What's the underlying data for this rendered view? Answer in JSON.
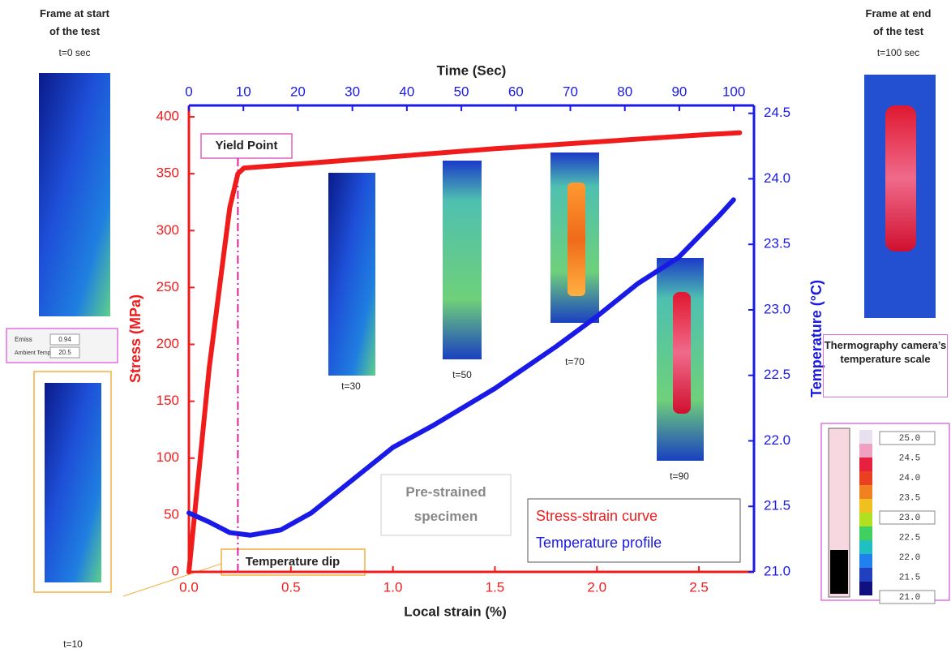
{
  "chart_data": {
    "type": "line",
    "xlabel": "Local strain (%)",
    "x2label": "Time (Sec)",
    "ylabel": "Stress (MPa)",
    "y2label": "Temperature (°C)",
    "xlim": [
      0,
      2.77
    ],
    "xticks": [
      {
        "value": 0,
        "label": "0.0"
      },
      0.5,
      {
        "value": 1,
        "label": "1.0"
      },
      1.5,
      {
        "value": 2,
        "label": "2.0"
      },
      2.5
    ],
    "x2lim": [
      0,
      103.7
    ],
    "x2ticks": [
      0,
      10,
      20,
      30,
      40,
      50,
      60,
      70,
      80,
      90,
      100
    ],
    "ylim": [
      0,
      410
    ],
    "yticks": [
      0,
      50,
      100,
      150,
      200,
      250,
      300,
      350,
      400
    ],
    "y2lim": [
      21.0,
      24.56
    ],
    "y2ticks": [
      {
        "value": 21,
        "label": "21.0"
      },
      21.5,
      {
        "value": 22,
        "label": "22.0"
      },
      22.5,
      {
        "value": 23,
        "label": "23.0"
      },
      23.5,
      {
        "value": 24,
        "label": "24.0"
      },
      24.5
    ],
    "legend": "lower right",
    "series": [
      {
        "name": "Stress-strain curve",
        "color": "#f01c1c",
        "x": [
          0,
          0.1,
          0.2,
          0.24,
          0.27,
          0.5,
          1.0,
          1.5,
          2.0,
          2.5,
          2.7
        ],
        "values": [
          0,
          180,
          320,
          350,
          355,
          358,
          365,
          372,
          378,
          384,
          386
        ]
      },
      {
        "name": "Temperature profile",
        "color": "#1a1ae6",
        "axis": "y2",
        "x": [
          0,
          0.1,
          0.2,
          0.3,
          0.45,
          0.6,
          0.8,
          1.0,
          1.2,
          1.5,
          1.8,
          2.0,
          2.2,
          2.4,
          2.6,
          2.67
        ],
        "values": [
          21.45,
          21.38,
          21.3,
          21.28,
          21.32,
          21.45,
          21.7,
          21.95,
          22.12,
          22.4,
          22.72,
          22.95,
          23.2,
          23.4,
          23.72,
          23.84
        ]
      }
    ],
    "annotations": [
      {
        "text": "Yield Point",
        "x": 0.24
      },
      {
        "text": "Temperature dip"
      },
      {
        "text": "Pre-strained specimen"
      }
    ]
  },
  "frames": {
    "start_title": "Frame at start of the test",
    "start_time": "t=0 sec",
    "end_title": "Frame at end of the test",
    "end_time": "t=100 sec",
    "labels": [
      "t=10",
      "t=30",
      "t=50",
      "t=70",
      "t=90"
    ]
  },
  "camera_panel": {
    "emiss_label": "Emiss",
    "emiss_value": "0.94",
    "ambient_label": "Ambient Temp",
    "ambient_value": "20.5"
  },
  "temperature_scale": {
    "title": "Thermography camera’s temperature scale",
    "labels": [
      "25.0",
      "24.5",
      "24.0",
      "23.5",
      "23.0",
      "22.5",
      "22.0",
      "21.5",
      "21.0"
    ]
  }
}
